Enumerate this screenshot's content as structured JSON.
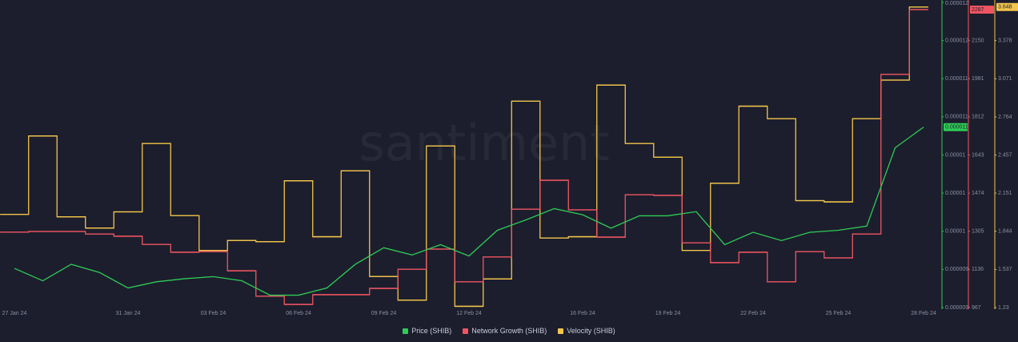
{
  "chart_data": {
    "type": "line",
    "watermark": "santiment",
    "categories": [
      "27 Jan 24",
      null,
      null,
      null,
      "31 Jan 24",
      null,
      null,
      "03 Feb 24",
      null,
      null,
      "06 Feb 24",
      null,
      null,
      "09 Feb 24",
      null,
      null,
      "12 Feb 24",
      null,
      null,
      null,
      "16 Feb 24",
      null,
      null,
      "19 Feb 24",
      null,
      null,
      "22 Feb 24",
      null,
      null,
      "25 Feb 24",
      null,
      null,
      "28 Feb 24"
    ],
    "ylim": [
      8.95e-06,
      1.191e-05
    ],
    "yticks": [
      {
        "value": 8.95e-06,
        "label": "0.000009"
      },
      {
        "value": 9.32e-06,
        "label": "0.000009"
      },
      {
        "value": 9.69e-06,
        "label": "0.00001"
      },
      {
        "value": 1.006e-05,
        "label": "0.00001"
      },
      {
        "value": 1.043e-05,
        "label": "0.00001"
      },
      {
        "value": 1.08e-05,
        "label": "0.000011"
      },
      {
        "value": 1.117e-05,
        "label": "0.000011"
      },
      {
        "value": 1.154e-05,
        "label": "0.000012"
      },
      {
        "value": 1.191e-05,
        "label": "0.000012"
      }
    ],
    "y2lim": [
      967,
      2319
    ],
    "y2ticks": [
      967,
      1136,
      1305,
      1474,
      1643,
      1812,
      1981,
      2150
    ],
    "y3lim": [
      1.23,
      3.685
    ],
    "y3ticks": [
      1.23,
      1.537,
      1.844,
      2.151,
      2.457,
      2.764,
      3.071,
      3.378
    ],
    "grid": false,
    "series": [
      {
        "name": "Price (SHIB)",
        "color": "#2ecc55",
        "axis": "y",
        "style": "line",
        "values": [
          9.33e-06,
          9.21e-06,
          9.37e-06,
          9.29e-06,
          9.14e-06,
          9.2e-06,
          9.23e-06,
          9.25e-06,
          9.21e-06,
          9.07e-06,
          9.07e-06,
          9.14e-06,
          9.37e-06,
          9.53e-06,
          9.46e-06,
          9.56e-06,
          9.45e-06,
          9.7e-06,
          9.8e-06,
          9.91e-06,
          9.85e-06,
          9.72e-06,
          9.84e-06,
          9.84e-06,
          9.88e-06,
          9.56e-06,
          9.68e-06,
          9.6e-06,
          9.68e-06,
          9.7e-06,
          9.74e-06,
          1.05e-05,
          1.07e-05
        ],
        "value_labels": [
          null,
          null,
          null,
          null,
          null,
          null,
          null,
          null,
          null,
          null,
          null,
          null,
          null,
          null,
          null,
          null,
          null,
          null,
          null,
          null,
          null,
          null,
          null,
          null,
          null,
          null,
          null,
          null,
          null,
          null,
          null,
          null,
          "0.000011"
        ]
      },
      {
        "name": "Network Growth (SHIB)",
        "color": "#ef5561",
        "axis": "y2",
        "style": "step",
        "values": [
          1301,
          1304,
          1304,
          1293,
          1283,
          1247,
          1212,
          1215,
          1130,
          1017,
          981,
          1024,
          1024,
          1052,
          1137,
          1226,
          1081,
          1191,
          1403,
          1531,
          1400,
          1279,
          1467,
          1464,
          1254,
          1166,
          1212,
          1081,
          1215,
          1187,
          1293,
          2000,
          2287
        ]
      },
      {
        "name": "Velocity (SHIB)",
        "color": "#f3c54b",
        "axis": "y3",
        "style": "step",
        "values": [
          1.98,
          2.61,
          1.96,
          1.87,
          2.0,
          2.55,
          1.97,
          1.69,
          1.77,
          1.76,
          2.25,
          1.8,
          2.33,
          1.48,
          1.29,
          2.53,
          1.24,
          1.46,
          2.89,
          1.79,
          1.8,
          3.02,
          2.55,
          2.44,
          1.69,
          2.23,
          2.85,
          2.75,
          2.09,
          2.08,
          2.75,
          3.06,
          3.648
        ]
      }
    ]
  }
}
